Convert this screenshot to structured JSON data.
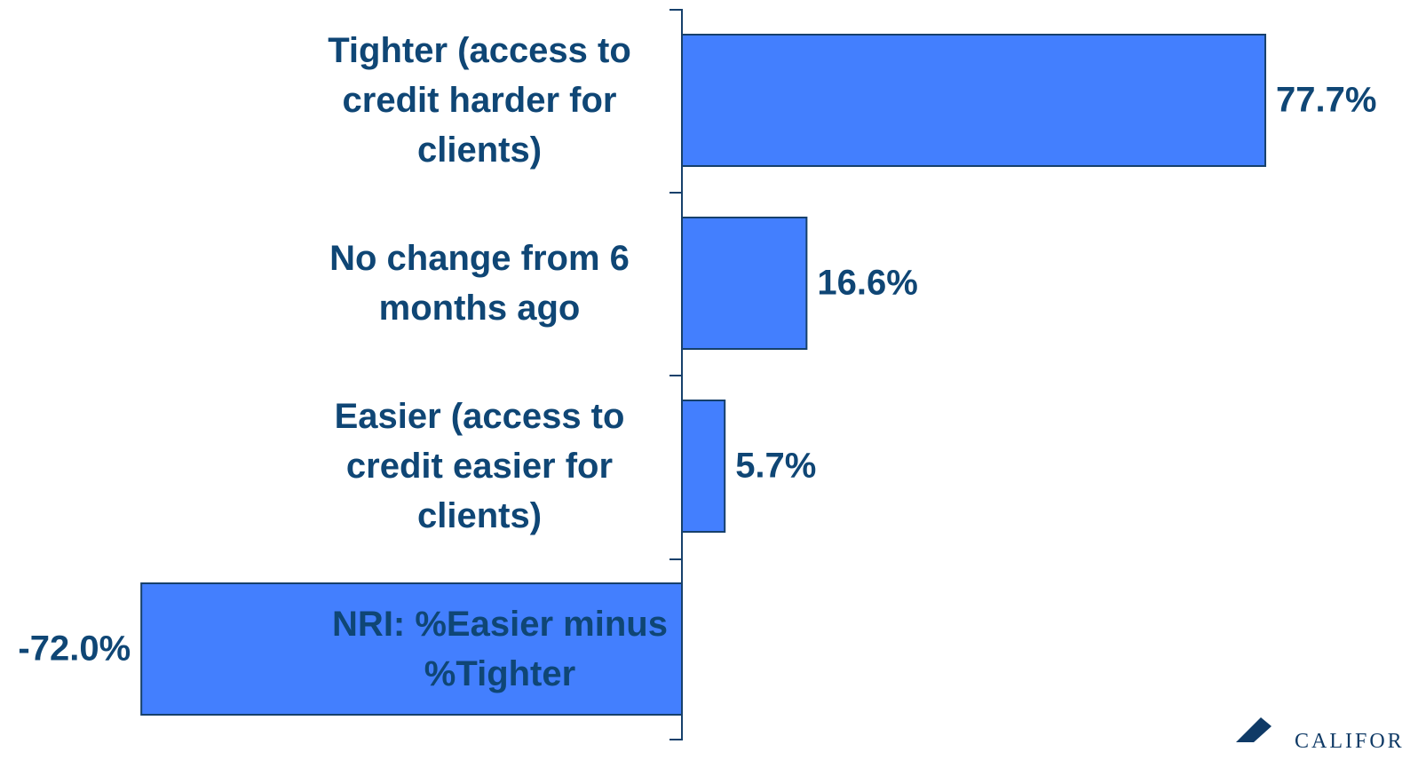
{
  "chart_data": {
    "type": "hbar",
    "categories": [
      "Tighter (access to credit harder for clients)",
      "No change from 6 months ago",
      "Easier (access to credit easier for clients)",
      "NRI: %Easier minus %Tighter"
    ],
    "values": [
      77.7,
      16.6,
      5.7,
      -72.0
    ],
    "value_labels": [
      "77.7%",
      "16.6%",
      "5.7%",
      "-72.0%"
    ],
    "color": "#437ffe",
    "logo_text": "CALIFOR"
  }
}
